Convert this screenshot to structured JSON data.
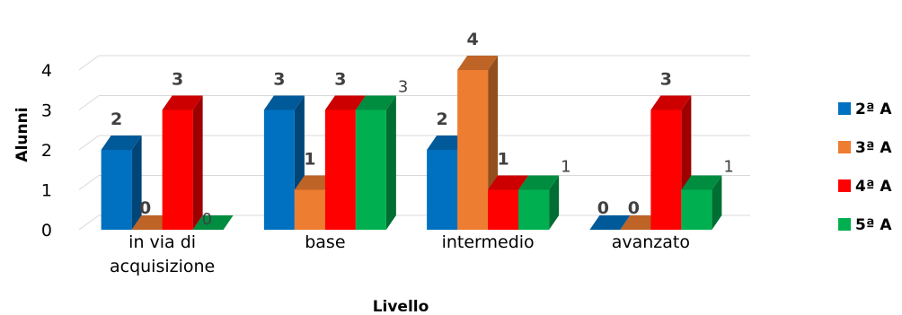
{
  "chart_data": {
    "type": "bar",
    "style": "3d-clustered-column",
    "xlabel": "Livello",
    "ylabel": "Alunni",
    "ylim": [
      0,
      4
    ],
    "yticks": [
      "0",
      "1",
      "2",
      "3",
      "4"
    ],
    "categories": [
      [
        "in via di",
        "acquisizione"
      ],
      [
        "base"
      ],
      [
        "intermedio"
      ],
      [
        "avanzato"
      ]
    ],
    "series": [
      {
        "name": "2ª A",
        "color": "#0070C0",
        "values": [
          2,
          3,
          2,
          0
        ],
        "labels": [
          "2",
          "3",
          "2",
          "0"
        ],
        "label_style": [
          "bold",
          "bold",
          "bold",
          "bold"
        ]
      },
      {
        "name": "3ª A",
        "color": "#ED7D31",
        "values": [
          0,
          1,
          4,
          0
        ],
        "labels": [
          "0",
          "1",
          "4",
          "0"
        ],
        "label_style": [
          "bold",
          "bold",
          "bold",
          "bold"
        ]
      },
      {
        "name": "4ª A",
        "color": "#FF0000",
        "values": [
          3,
          3,
          1,
          3
        ],
        "labels": [
          "3",
          "3",
          "1",
          "3"
        ],
        "label_style": [
          "bold",
          "bold",
          "bold",
          "bold"
        ]
      },
      {
        "name": "5ª A",
        "color": "#00B050",
        "values": [
          0,
          3,
          1,
          1
        ],
        "labels": [
          "0",
          "3",
          "1",
          "1"
        ],
        "label_style": [
          "thin",
          "thin",
          "thin",
          "thin"
        ]
      }
    ],
    "grid": true,
    "legend_position": "right"
  }
}
